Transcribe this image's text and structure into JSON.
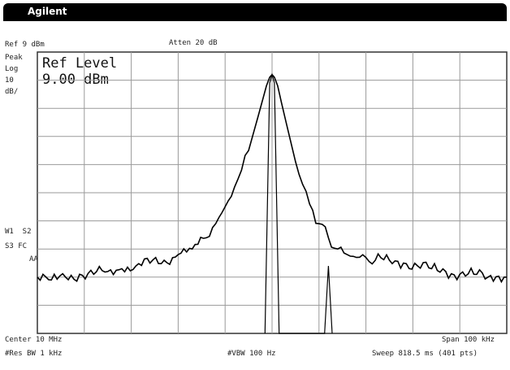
{
  "window": {
    "brand": "Agilent"
  },
  "header": {
    "ref": "Ref 9 dBm",
    "atten": "Atten 20 dB"
  },
  "left_panel": {
    "peak": "Peak",
    "log": "Log",
    "scale_value": "10",
    "scale_unit": "dB/",
    "w1_s2": "W1  S2",
    "s3_fc": "S3 FC",
    "aa": "AA"
  },
  "active_function": {
    "label": "Ref Level",
    "value": "9.00 dBm"
  },
  "footer": {
    "center": "Center 10 MHz",
    "res_bw": "#Res BW 1 kHz",
    "vbw": "#VBW 100 Hz",
    "span": "Span 100 kHz",
    "sweep": "Sweep 818.5 ms (401 pts)"
  },
  "chart_data": {
    "type": "line",
    "x_unit": "kHz offset from center",
    "y_unit": "dBm",
    "xlim": [
      -50,
      50
    ],
    "ylim": [
      -91,
      9
    ],
    "grid": true,
    "series": [
      {
        "x": [
          -50,
          -47,
          -44,
          -41,
          -38,
          -35,
          -32,
          -29,
          -26,
          -23,
          -20,
          -17,
          -14,
          -12,
          -10,
          -8,
          -6.5,
          -5,
          -4,
          -3,
          -2,
          -1.2,
          -0.5,
          0,
          0.5,
          1.2,
          2,
          3,
          4,
          5,
          6.5,
          8,
          10,
          12,
          14,
          16,
          18,
          20,
          22,
          25,
          28,
          31,
          34,
          37,
          40,
          43,
          46,
          50
        ],
        "y": [
          -71,
          -72,
          -71,
          -70,
          -70,
          -69,
          -68,
          -67,
          -66,
          -65,
          -63,
          -61,
          -57,
          -52,
          -46,
          -39,
          -33,
          -26,
          -20,
          -14,
          -8,
          -3,
          0,
          1,
          0,
          -3,
          -9,
          -16,
          -23,
          -30,
          -38,
          -45,
          -52,
          -57,
          -61,
          -63,
          -64,
          -64,
          -65,
          -65,
          -66,
          -67,
          -68,
          -69,
          -70,
          -70,
          -71,
          -71
        ]
      },
      {
        "x": [
          -1.5,
          -0.5,
          0,
          0.5,
          1.5,
          11.2,
          12,
          12.8
        ],
        "y": [
          -91,
          -2,
          1,
          -2,
          -91,
          -91,
          -67,
          -91
        ]
      }
    ]
  }
}
